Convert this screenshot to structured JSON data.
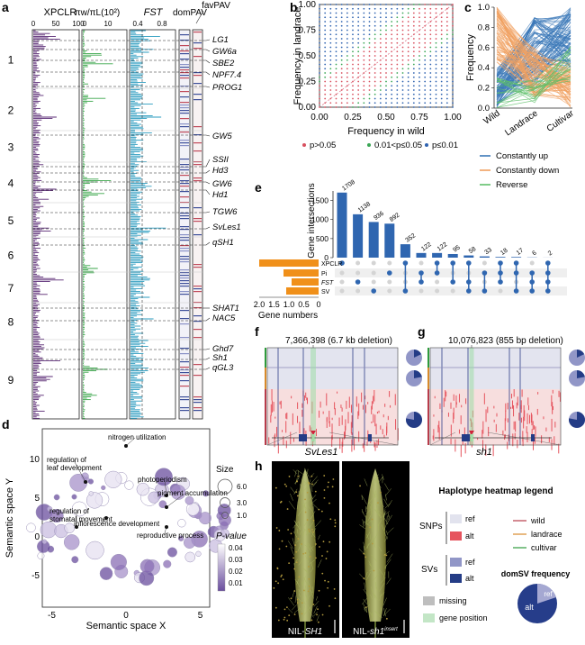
{
  "panel_labels": {
    "a": "a",
    "b": "b",
    "c": "c",
    "d": "d",
    "e": "e",
    "f": "f",
    "g": "g",
    "h": "h"
  },
  "panel_a": {
    "column_titles": [
      "XPCLR",
      "πw/πL(10²)",
      "FST",
      "domPAV",
      "favPAV"
    ],
    "col_ticks": [
      [
        "0",
        "50",
        "100"
      ],
      [
        "0",
        "10"
      ],
      [
        "0.4",
        "0.8"
      ]
    ],
    "chromosomes": [
      "1",
      "2",
      "3",
      "4",
      "5",
      "6",
      "7",
      "8",
      "9"
    ],
    "genes": [
      "LG1",
      "GW6a",
      "SBE2",
      "NPF7.4",
      "PROG1",
      "GW5",
      "SSII",
      "Hd3",
      "GW6",
      "Hd1",
      "TGW6",
      "SvLes1",
      "qSH1",
      "SHAT1",
      "NAC5",
      "Ghd7",
      "Sh1",
      "qGL3"
    ]
  },
  "panel_b": {
    "xlabel": "Frequency in wild",
    "ylabel": "Frequency in landrace",
    "ticks": [
      "0.00",
      "0.25",
      "0.50",
      "0.75",
      "1.00"
    ],
    "legend": [
      "p>0.05",
      "0.01<p≤0.05",
      "p≤0.01"
    ],
    "colors": [
      "#d8505f",
      "#3aa655",
      "#2f63b0"
    ]
  },
  "panel_c": {
    "ylabel": "Frequency",
    "ticks": [
      "0.0",
      "0.2",
      "0.4",
      "0.6",
      "0.8",
      "1.0"
    ],
    "xcats": [
      "Wild",
      "Landrace",
      "Cultivar"
    ],
    "legend": [
      "Constantly up",
      "Constantly down",
      "Reverse"
    ],
    "colors": [
      "#3b78b8",
      "#f0a060",
      "#5fbf6a"
    ]
  },
  "panel_d": {
    "xlabel": "Semantic space X",
    "ylabel": "Semantic space Y",
    "xticks": [
      "-5",
      "0",
      "5"
    ],
    "yticks": [
      "-5",
      "0",
      "5",
      "10"
    ],
    "annotations": [
      "nitrogen utilization",
      "regulation of leaf development",
      "photoperiodism",
      "pigment accumulation",
      "regulation of stomatal movement",
      "inflorescence development",
      "reproductive process"
    ],
    "size_title": "Size",
    "size_values": [
      "6.0",
      "3.0",
      "1.0"
    ],
    "p_title": "P-value",
    "p_values": [
      "0.04",
      "0.03",
      "0.02",
      "0.01"
    ]
  },
  "chart_data": {
    "type": "bar",
    "title": "",
    "ylabel": "Gene intersections",
    "values": [
      1708,
      1138,
      936,
      892,
      352,
      122,
      122,
      95,
      58,
      33,
      18,
      17,
      6,
      2
    ],
    "value_labels": [
      "1708",
      "1138",
      "936",
      "892",
      "352",
      "122",
      "122",
      "95",
      "58",
      "33",
      "18",
      "17",
      "6",
      "2"
    ],
    "ylim": [
      0,
      1750
    ],
    "yticks": [
      "0",
      "500",
      "1000",
      "1500"
    ],
    "set_names": [
      "XPCLR",
      "Pi",
      "FST",
      "SV"
    ],
    "set_sizes": [
      2.2,
      1.3,
      1.0,
      1.2
    ],
    "set_size_unit": "thousands",
    "set_xlabel": "Gene numbers",
    "set_xticks": [
      "2.0",
      "1.5",
      "1.0",
      "0.5",
      "0"
    ],
    "matrix": [
      [
        0
      ],
      [
        2
      ],
      [
        3
      ],
      [
        1
      ],
      [
        0,
        3
      ],
      [
        1,
        2
      ],
      [
        0,
        1
      ],
      [
        0,
        2
      ],
      [
        0,
        2,
        3
      ],
      [
        1,
        3
      ],
      [
        0,
        1,
        2
      ],
      [
        0,
        1,
        3
      ],
      [
        1,
        2,
        3
      ],
      [
        0,
        1,
        2,
        3
      ]
    ]
  },
  "panel_f": {
    "title": "7,366,398 (6.7 kb deletion)",
    "gene": "SvLes1"
  },
  "panel_g": {
    "title": "10,076,823 (855 bp deletion)",
    "gene": "sh1"
  },
  "panel_h": {
    "left_label": "NIL-SH1",
    "right_label": "NIL-sh1insert"
  },
  "legend_box": {
    "title": "Haplotype heatmap legend",
    "snps": "SNPs",
    "svs": "SVs",
    "ref": "ref",
    "alt": "alt",
    "missing": "missing",
    "gene_position": "gene position",
    "wild": "wild",
    "landrace": "landrace",
    "cultivar": "cultivar",
    "domsv_title": "domSV frequency",
    "pie_alt": "alt",
    "pie_ref": "ref"
  }
}
